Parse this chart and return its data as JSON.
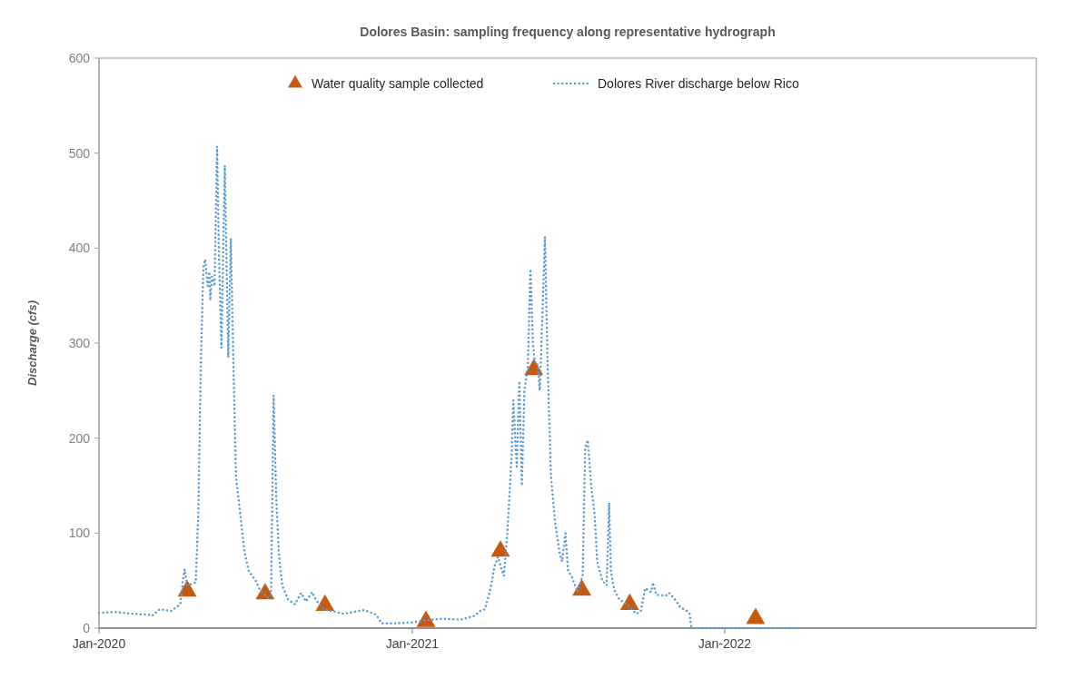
{
  "chart_data": {
    "type": "line",
    "title": "Dolores Basin: sampling frequency along representative hydrograph",
    "ylabel": "Discharge (cfs)",
    "xlim": [
      "2020-01-01",
      "2022-12-31"
    ],
    "xticks": [
      {
        "value": "2020-01-01",
        "label": "Jan-2020"
      },
      {
        "value": "2021-01-01",
        "label": "Jan-2021"
      },
      {
        "value": "2022-01-01",
        "label": "Jan-2022"
      }
    ],
    "ylim": [
      0,
      600
    ],
    "yticks": [
      0,
      100,
      200,
      300,
      400,
      500,
      600
    ],
    "grid": false,
    "legend": "top",
    "series": [
      {
        "name": "Water quality sample collected",
        "type": "scatter",
        "marker": "triangle",
        "color": "#c55a11",
        "x": [
          "2020-04-13",
          "2020-07-13",
          "2020-09-21",
          "2021-01-17",
          "2021-04-14",
          "2021-05-23",
          "2021-07-18",
          "2021-09-12",
          "2022-02-06"
        ],
        "values": [
          39,
          36,
          24,
          7,
          81,
          272,
          40,
          25,
          10
        ]
      },
      {
        "name": "Dolores River discharge below Rico",
        "line_style": "dotted",
        "marker": "none",
        "color": "#5b9bd5",
        "x": [
          "2020-01-01",
          "2020-01-20",
          "2020-02-10",
          "2020-03-01",
          "2020-03-03",
          "2020-03-12",
          "2020-03-25",
          "2020-04-05",
          "2020-04-08",
          "2020-04-10",
          "2020-04-13",
          "2020-04-23",
          "2020-04-26",
          "2020-04-29",
          "2020-05-02",
          "2020-05-04",
          "2020-05-07",
          "2020-05-09",
          "2020-05-10",
          "2020-05-12",
          "2020-05-15",
          "2020-05-18",
          "2020-05-20",
          "2020-05-23",
          "2020-05-27",
          "2020-05-31",
          "2020-06-03",
          "2020-06-06",
          "2020-06-09",
          "2020-06-14",
          "2020-06-19",
          "2020-06-24",
          "2020-07-02",
          "2020-07-07",
          "2020-07-16",
          "2020-07-20",
          "2020-07-23",
          "2020-07-26",
          "2020-07-29",
          "2020-08-02",
          "2020-08-09",
          "2020-08-17",
          "2020-08-24",
          "2020-08-30",
          "2020-09-06",
          "2020-09-10",
          "2020-09-19",
          "2020-09-29",
          "2020-10-13",
          "2020-10-24",
          "2020-11-06",
          "2020-11-20",
          "2020-11-26",
          "2020-12-14",
          "2021-01-01",
          "2021-01-15",
          "2021-02-05",
          "2021-02-27",
          "2021-03-15",
          "2021-03-21",
          "2021-03-27",
          "2021-04-02",
          "2021-04-07",
          "2021-04-11",
          "2021-04-16",
          "2021-04-18",
          "2021-04-22",
          "2021-04-27",
          "2021-04-29",
          "2021-05-03",
          "2021-05-06",
          "2021-05-09",
          "2021-05-12",
          "2021-05-16",
          "2021-05-19",
          "2021-05-22",
          "2021-05-24",
          "2021-05-27",
          "2021-05-30",
          "2021-06-02",
          "2021-06-05",
          "2021-06-08",
          "2021-06-12",
          "2021-06-17",
          "2021-06-22",
          "2021-06-25",
          "2021-06-29",
          "2021-07-02",
          "2021-07-06",
          "2021-07-13",
          "2021-07-19",
          "2021-07-22",
          "2021-07-25",
          "2021-07-29",
          "2021-08-02",
          "2021-08-05",
          "2021-08-11",
          "2021-08-16",
          "2021-08-19",
          "2021-08-21",
          "2021-08-25",
          "2021-08-31",
          "2021-09-09",
          "2021-09-20",
          "2021-09-25",
          "2021-09-30",
          "2021-10-07",
          "2021-10-09",
          "2021-10-13",
          "2021-10-24",
          "2021-10-28",
          "2021-11-04",
          "2021-11-10",
          "2021-11-18",
          "2021-11-21",
          "2021-11-23",
          "2022-01-05",
          "2022-03-30"
        ],
        "values": [
          16,
          17,
          15,
          14,
          13,
          20,
          18,
          25,
          50,
          62,
          45,
          48,
          120,
          280,
          380,
          388,
          360,
          375,
          345,
          370,
          360,
          507,
          400,
          295,
          487,
          285,
          410,
          280,
          160,
          120,
          80,
          60,
          50,
          40,
          32,
          35,
          245,
          140,
          80,
          45,
          30,
          25,
          37,
          28,
          38,
          30,
          20,
          18,
          15,
          17,
          19,
          14,
          5,
          5,
          6,
          8,
          10,
          9,
          13,
          18,
          20,
          40,
          65,
          75,
          60,
          55,
          100,
          180,
          240,
          170,
          260,
          150,
          250,
          275,
          378,
          300,
          280,
          280,
          250,
          330,
          412,
          280,
          160,
          110,
          80,
          70,
          100,
          60,
          55,
          38,
          55,
          190,
          198,
          150,
          120,
          70,
          50,
          45,
          132,
          60,
          40,
          30,
          25,
          15,
          18,
          42,
          38,
          48,
          35,
          34,
          37,
          30,
          22,
          18,
          15,
          0,
          0,
          0
        ]
      }
    ]
  }
}
